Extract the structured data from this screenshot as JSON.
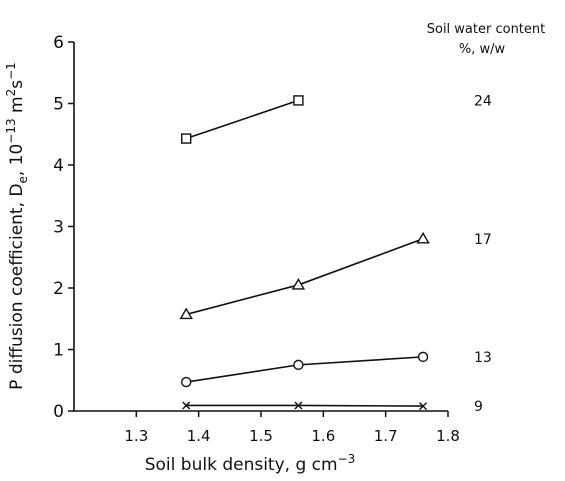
{
  "chart_data": {
    "type": "line",
    "xlabel": [
      "Soil bulk density, g cm",
      "−3"
    ],
    "ylabel": [
      "P diffusion coefficient, D",
      "e",
      ", 10",
      "−13",
      " m",
      "2",
      "s",
      "−1"
    ],
    "legend_title": [
      "Soil water content",
      "%, w/w"
    ],
    "x": [
      1.38,
      1.56,
      1.76
    ],
    "series": [
      {
        "name": "24",
        "marker": "square",
        "color": "#111",
        "values": [
          4.43,
          5.05,
          null
        ]
      },
      {
        "name": "17",
        "marker": "triangle",
        "color": "#111",
        "values": [
          1.57,
          2.05,
          2.8
        ]
      },
      {
        "name": "13",
        "marker": "circle",
        "color": "#111",
        "values": [
          0.47,
          0.75,
          0.88
        ]
      },
      {
        "name": "9",
        "marker": "x",
        "color": "#111",
        "values": [
          0.09,
          0.09,
          0.08
        ]
      }
    ],
    "xlim": [
      1.2,
      1.8
    ],
    "xticks": [
      1.3,
      1.4,
      1.5,
      1.6,
      1.7,
      1.8
    ],
    "ylim": [
      0,
      6
    ],
    "yticks": [
      0,
      1,
      2,
      3,
      4,
      5,
      6
    ]
  }
}
